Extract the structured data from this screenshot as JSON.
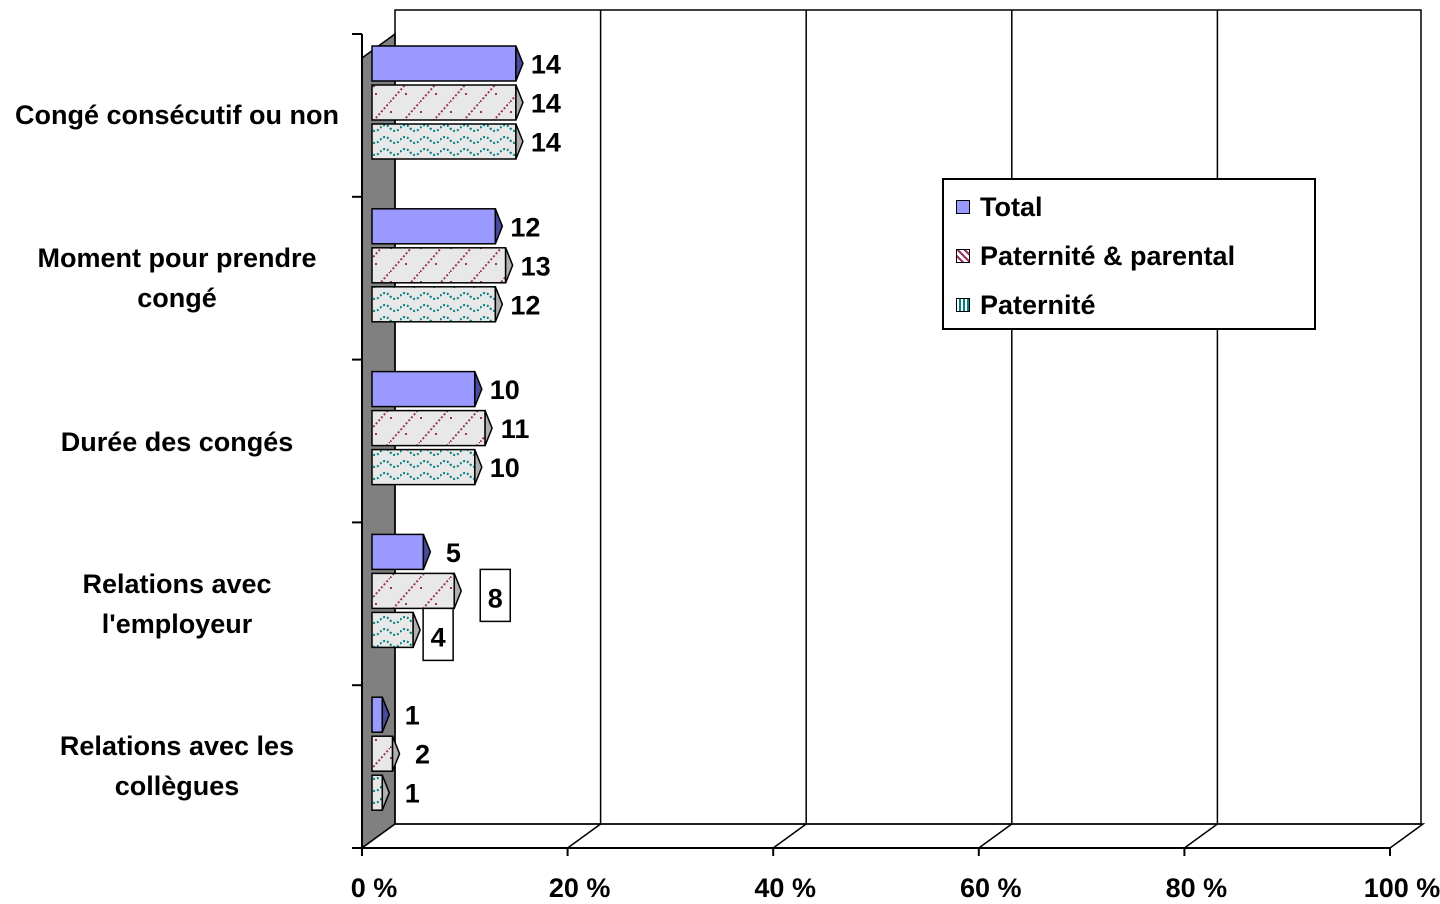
{
  "chart_data": {
    "type": "bar",
    "orientation": "horizontal",
    "style": "3d-clustered-bar",
    "categories": [
      "Congé consécutif ou non",
      "Moment pour prendre congé",
      "Durée des congés",
      "Relations avec l'employeur",
      "Relations avec les collègues"
    ],
    "series": [
      {
        "name": "Total",
        "values": [
          14,
          12,
          10,
          5,
          1
        ],
        "color": "#9999ff",
        "pattern": "solid"
      },
      {
        "name": "Paternité & parental",
        "values": [
          14,
          13,
          11,
          8,
          2
        ],
        "color": "#993366",
        "pattern": "diagonal"
      },
      {
        "name": "Paternité",
        "values": [
          14,
          12,
          10,
          4,
          1
        ],
        "color": "#008080",
        "pattern": "wave"
      }
    ],
    "xlim": [
      0,
      100
    ],
    "x_ticks": [
      "0 %",
      "20 %",
      "40 %",
      "60 %",
      "80 %",
      "100 %"
    ],
    "grid": "vertical",
    "legend_position": "right",
    "boxed_labels": [
      {
        "series": 1,
        "category": 3
      },
      {
        "series": 2,
        "category": 3
      }
    ]
  }
}
